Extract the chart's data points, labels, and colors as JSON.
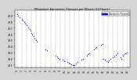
{
  "title": "Milwaukee Barometric Pressure per Minute (24 Hours)",
  "bg_color": "#d4d4d4",
  "plot_bg_color": "#ffffff",
  "dot_color": "#0000ff",
  "legend_color": "#0000ff",
  "legend_label": "Barometric Pressure",
  "xlim": [
    -0.5,
    23.5
  ],
  "ylim": [
    29.05,
    29.98
  ],
  "yticks": [
    29.1,
    29.2,
    29.3,
    29.4,
    29.5,
    29.6,
    29.7,
    29.8,
    29.9
  ],
  "xticks": [
    0,
    1,
    2,
    3,
    4,
    5,
    6,
    7,
    8,
    9,
    10,
    11,
    12,
    13,
    14,
    15,
    16,
    17,
    18,
    19,
    20,
    21,
    22,
    23
  ],
  "x": [
    0.0,
    0.3,
    0.6,
    1.0,
    1.2,
    1.5,
    1.7,
    2.0,
    2.3,
    2.6,
    2.8,
    3.0,
    3.2,
    3.5,
    3.7,
    4.0,
    4.2,
    6.0,
    6.3,
    8.0,
    8.3,
    8.6,
    8.9,
    9.5,
    9.8,
    10.5,
    10.8,
    11.0,
    11.3,
    11.6,
    11.8,
    12.0,
    12.3,
    12.6,
    13.5,
    13.8,
    14.5,
    14.8,
    15.1,
    16.0,
    16.3,
    16.6,
    17.5,
    17.8,
    18.0,
    18.3,
    18.6,
    18.9,
    19.1,
    19.4,
    20.0,
    20.3,
    20.6,
    20.9,
    21.5,
    21.8,
    22.0,
    22.3,
    22.6,
    22.9
  ],
  "y": [
    29.92,
    29.9,
    29.87,
    29.84,
    29.82,
    29.79,
    29.77,
    29.74,
    29.71,
    29.68,
    29.65,
    29.62,
    29.59,
    29.56,
    29.53,
    29.5,
    29.48,
    29.35,
    29.33,
    29.25,
    29.23,
    29.21,
    29.19,
    29.18,
    29.16,
    29.14,
    29.13,
    29.12,
    29.11,
    29.1,
    29.09,
    29.1,
    29.12,
    29.14,
    29.18,
    29.2,
    29.25,
    29.27,
    29.28,
    29.35,
    29.37,
    29.38,
    29.42,
    29.44,
    29.2,
    29.18,
    29.16,
    29.15,
    29.17,
    29.19,
    29.22,
    29.24,
    29.26,
    29.28,
    29.22,
    29.2,
    29.25,
    29.27,
    29.28,
    29.3
  ]
}
